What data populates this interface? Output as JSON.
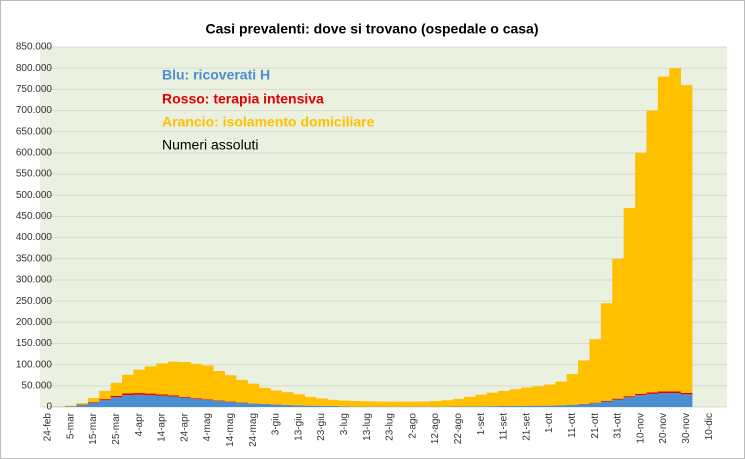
{
  "chart_data": {
    "type": "stacked_bar",
    "title": "Casi prevalenti: dove si trovano (ospedale o casa)",
    "annotation": "Numeri assoluti",
    "categories": [
      "24-feb",
      null,
      "5-mar",
      null,
      "15-mar",
      null,
      "25-mar",
      null,
      "4-apr",
      null,
      "14-apr",
      null,
      "24-apr",
      null,
      "4-mag",
      null,
      "14-mag",
      null,
      "24-mag",
      null,
      "3-giu",
      null,
      "13-giu",
      null,
      "23-giu",
      null,
      "3-lug",
      null,
      "13-lug",
      null,
      "23-lug",
      null,
      "2-ago",
      null,
      "12-ago",
      null,
      "22-ago",
      null,
      "1-set",
      null,
      "11-set",
      null,
      "21-set",
      null,
      "1-ott",
      null,
      "11-ott",
      null,
      "21-ott",
      null,
      "31-ott",
      null,
      "10-nov",
      null,
      "20-nov",
      null,
      "30-nov",
      null,
      "10-dic"
    ],
    "series": [
      {
        "name": "Blu: ricoverati H",
        "color": "#4a8fd4",
        "values": [
          100,
          400,
          1500,
          5000,
          10000,
          16000,
          23000,
          28000,
          29000,
          28000,
          26500,
          25000,
          22000,
          19000,
          17000,
          14000,
          12000,
          10000,
          8000,
          7000,
          5500,
          4500,
          3500,
          3000,
          2500,
          2200,
          1000,
          900,
          850,
          800,
          750,
          750,
          760,
          800,
          850,
          950,
          1100,
          1300,
          1500,
          1800,
          2200,
          2400,
          2600,
          2800,
          3000,
          3600,
          4700,
          6500,
          9000,
          13000,
          17500,
          23000,
          28000,
          31000,
          33000,
          33000,
          30000,
          null,
          null
        ]
      },
      {
        "name": "Rosso: terapia intensiva",
        "color": "#e00000",
        "values": [
          0,
          50,
          300,
          800,
          1600,
          2600,
          3500,
          3900,
          3900,
          3600,
          3200,
          2700,
          2200,
          1800,
          1500,
          1200,
          900,
          700,
          550,
          450,
          350,
          280,
          220,
          180,
          150,
          110,
          100,
          80,
          70,
          60,
          50,
          45,
          45,
          50,
          60,
          70,
          80,
          90,
          110,
          140,
          180,
          200,
          230,
          260,
          290,
          360,
          500,
          800,
          1200,
          1700,
          2200,
          2500,
          3000,
          3400,
          3700,
          3800,
          3600,
          null,
          null
        ]
      },
      {
        "name": "Arancio: isolamento domiciliare",
        "color": "#ffc000",
        "values": [
          200,
          550,
          1200,
          3200,
          9400,
          19400,
          30500,
          44100,
          55100,
          64400,
          73300,
          79300,
          81800,
          81200,
          79500,
          69800,
          62100,
          53300,
          46450,
          37550,
          33150,
          30220,
          26280,
          20820,
          17350,
          14690,
          13900,
          13020,
          12580,
          12140,
          11700,
          11700,
          11800,
          12150,
          13090,
          14980,
          17820,
          22610,
          27390,
          32060,
          35620,
          39400,
          43170,
          45940,
          49710,
          56040,
          72800,
          102700,
          149800,
          230300,
          330300,
          444500,
          569000,
          665600,
          743300,
          763200,
          726400,
          null,
          null
        ]
      }
    ],
    "ylim": [
      0,
      850000
    ],
    "yticks": [
      0,
      {
        "value": 50000,
        "label": "50.000"
      },
      {
        "value": 100000,
        "label": "100.000"
      },
      {
        "value": 150000,
        "label": "150.000"
      },
      {
        "value": 200000,
        "label": "200.000"
      },
      {
        "value": 250000,
        "label": "250.000"
      },
      {
        "value": 300000,
        "label": "300.000"
      },
      {
        "value": 350000,
        "label": "350.000"
      },
      {
        "value": 400000,
        "label": "400.000"
      },
      {
        "value": 450000,
        "label": "450.000"
      },
      {
        "value": 500000,
        "label": "500.000"
      },
      {
        "value": 550000,
        "label": "550.000"
      },
      {
        "value": 600000,
        "label": "600.000"
      },
      {
        "value": 650000,
        "label": "650.000"
      },
      {
        "value": 700000,
        "label": "700.000"
      },
      {
        "value": 750000,
        "label": "750.000"
      },
      {
        "value": 800000,
        "label": "800.000"
      },
      {
        "value": 850000,
        "label": "850.000"
      }
    ],
    "grid": true
  }
}
